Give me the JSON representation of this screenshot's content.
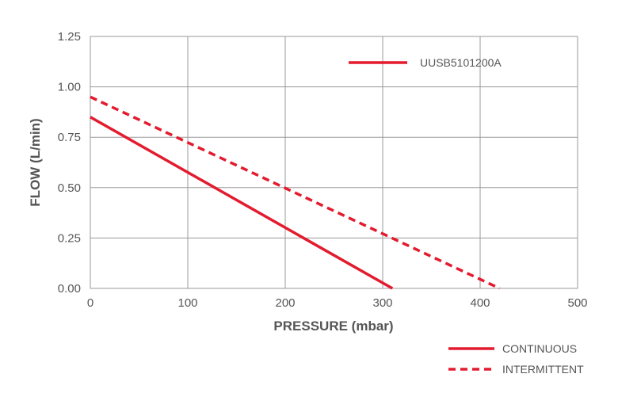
{
  "chart_data": {
    "type": "line",
    "title": "",
    "xlabel": "PRESSURE (mbar)",
    "ylabel": "FLOW (L/min)",
    "xlim": [
      0,
      500
    ],
    "ylim": [
      0,
      1.25
    ],
    "x_ticks": [
      "0",
      "100",
      "200",
      "300",
      "400",
      "500"
    ],
    "y_ticks": [
      "0.00",
      "0.25",
      "0.50",
      "0.75",
      "1.00",
      "1.25"
    ],
    "grid": true,
    "model_legend": "UUSB5101200A",
    "series": [
      {
        "name": "CONTINUOUS",
        "style": "solid",
        "color": "#e31b2e",
        "x": [
          0,
          310
        ],
        "y": [
          0.85,
          0.0
        ]
      },
      {
        "name": "INTERMITTENT",
        "style": "dashed",
        "color": "#e31b2e",
        "x": [
          0,
          420
        ],
        "y": [
          0.95,
          0.0
        ]
      }
    ]
  }
}
